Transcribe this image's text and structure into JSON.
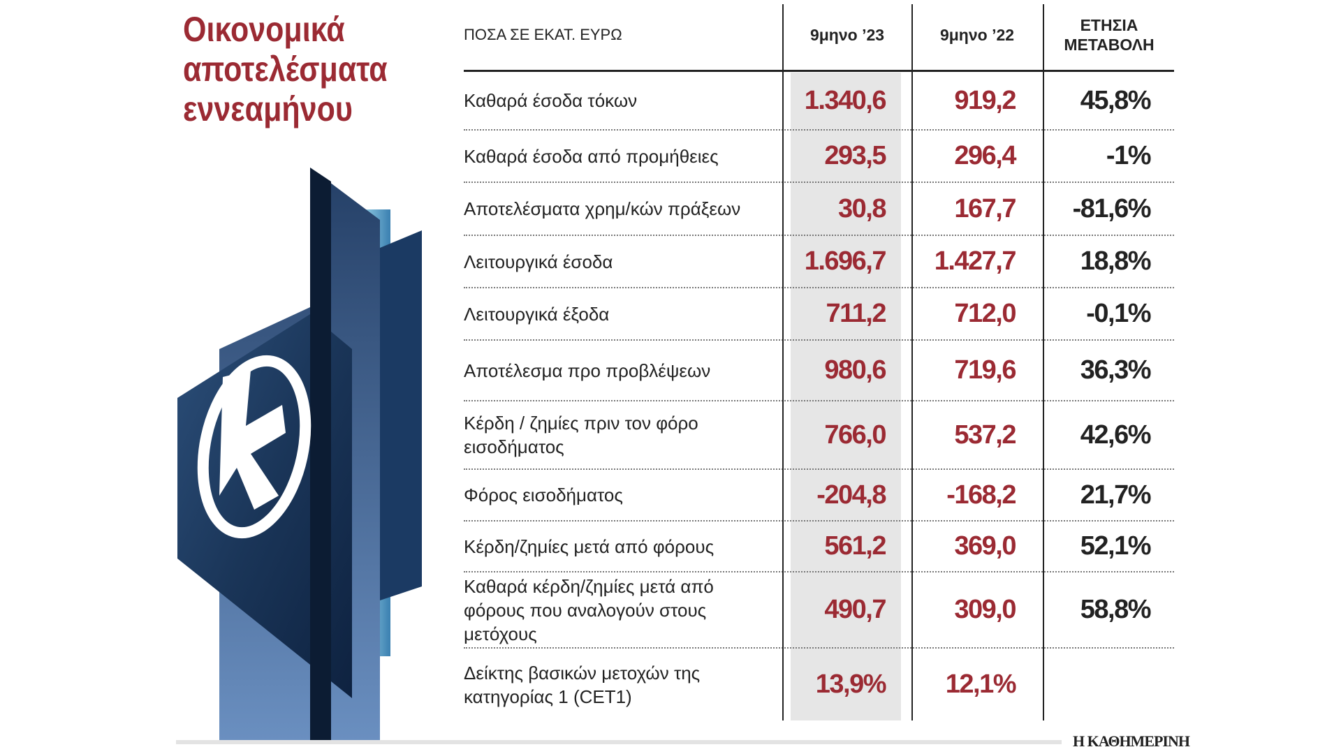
{
  "title": [
    "Οικονομικά",
    "αποτελέσματα",
    "εννεαμήνου"
  ],
  "header": {
    "label": "ΠΟΣΑ ΣΕ ΕΚΑΤ. ΕΥΡΩ",
    "col1": "9μηνο ’23",
    "col2": "9μηνο ’22",
    "col3_line1": "ΕΤΗΣΙΑ",
    "col3_line2": "ΜΕΤΑΒΟΛΗ"
  },
  "rows": [
    {
      "label": "Καθαρά έσοδα τόκων",
      "v23": "1.340,6",
      "v22": "919,2",
      "change": "45,8%"
    },
    {
      "label": "Καθαρά έσοδα από προμήθειες",
      "v23": "293,5",
      "v22": "296,4",
      "change": "-1%"
    },
    {
      "label": "Αποτελέσματα χρημ/κών πράξεων",
      "v23": "30,8",
      "v22": "167,7",
      "change": "-81,6%"
    },
    {
      "label": "Λειτουργικά έσοδα",
      "v23": "1.696,7",
      "v22": "1.427,7",
      "change": "18,8%"
    },
    {
      "label": "Λειτουργικά έξοδα",
      "v23": "711,2",
      "v22": "712,0",
      "change": "-0,1%"
    },
    {
      "label": "Αποτέλεσμα προ προβλέψεων",
      "v23": "980,6",
      "v22": "719,6",
      "change": "36,3%"
    },
    {
      "label": "Κέρδη / ζημίες πριν τον φόρο εισοδήματος",
      "v23": "766,0",
      "v22": "537,2",
      "change": "42,6%"
    },
    {
      "label": "Φόρος εισοδήματος",
      "v23": "-204,8",
      "v22": "-168,2",
      "change": "21,7%"
    },
    {
      "label": "Κέρδη/ζημίες μετά από φόρους",
      "v23": "561,2",
      "v22": "369,0",
      "change": "52,1%"
    },
    {
      "label": "Καθαρά κέρδη/ζημίες μετά από φόρους που αναλογούν στους μετόχους",
      "v23": "490,7",
      "v22": "309,0",
      "change": "58,8%"
    },
    {
      "label": "Δείκτης βασικών μετοχών της κατηγορίας 1 (CET1)",
      "v23": "13,9%",
      "v22": "12,1%",
      "change": ""
    }
  ],
  "source": "Η ΚΑΘΗΜΕΡΙΝΗ",
  "colors": {
    "accent": "#9b2a33",
    "highlight": "#e6e6e6"
  }
}
